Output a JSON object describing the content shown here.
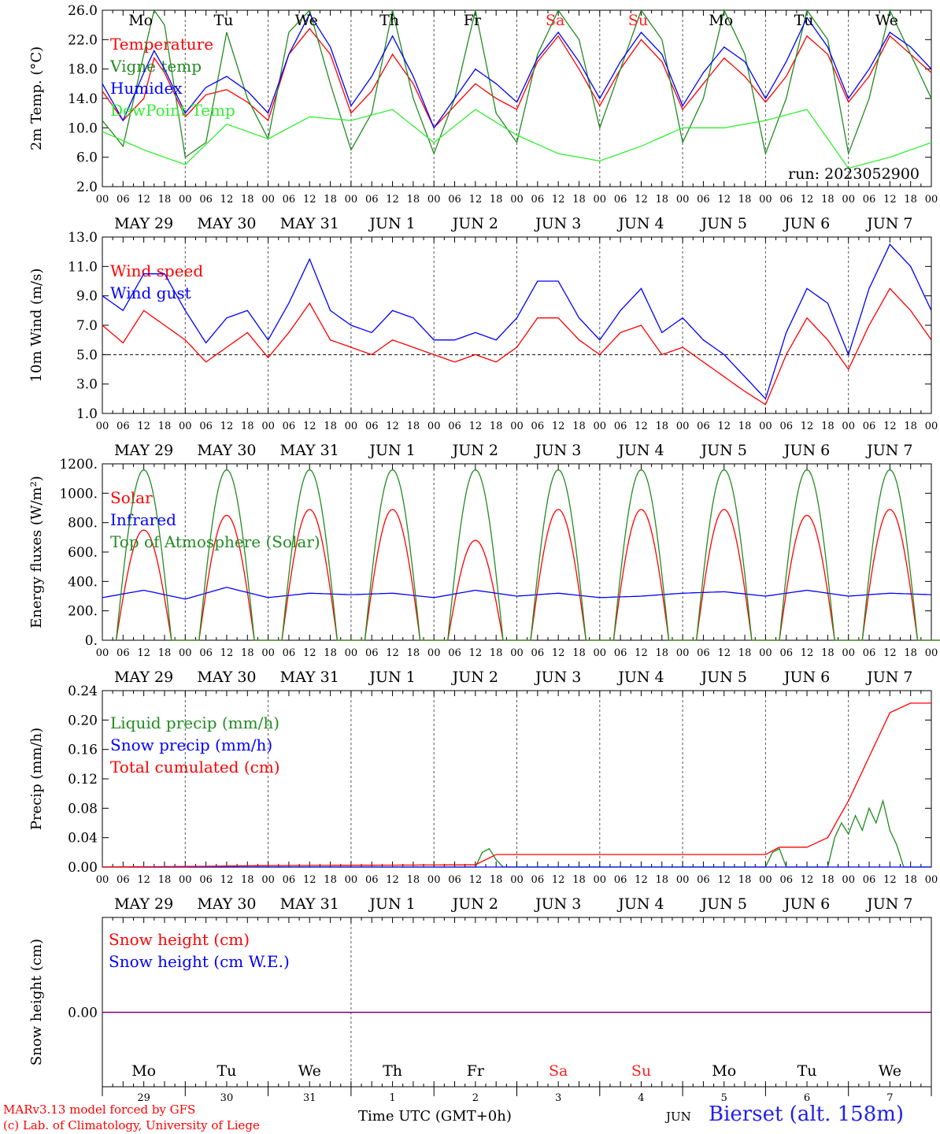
{
  "x_axis": {
    "hour_ticks": [
      "00",
      "06",
      "12",
      "18"
    ],
    "final_tick": "00",
    "day_labels": [
      "MAY 29",
      "MAY 30",
      "MAY 31",
      "JUN  1",
      "JUN  2",
      "JUN  3",
      "JUN  4",
      "JUN  5",
      "JUN  6",
      "JUN  7"
    ],
    "weekdays": [
      "Mo",
      "Tu",
      "We",
      "Th",
      "Fr",
      "Sa",
      "Su",
      "Mo",
      "Tu",
      "We"
    ],
    "weekend_color": "#ff2020",
    "weekend_index": [
      5,
      6
    ],
    "bottom_day_numbers": [
      "29",
      "30",
      "31",
      "1",
      "2",
      "3",
      "4",
      "5",
      "6",
      "7"
    ],
    "bottom_month": "JUN",
    "title": "Time UTC (GMT+0h)"
  },
  "footer": {
    "credit_line1": "MARv3.13 model forced by GFS",
    "credit_line2": "(c) Lab. of Climatology, University of Liege",
    "station": "Bierset (alt. 158m)"
  },
  "chart_data": [
    {
      "id": "temperature",
      "type": "line",
      "ylabel": "2m Temp. (°C)",
      "ylim": [
        2,
        26
      ],
      "yticks": [
        "26.0",
        "22.0",
        "18.0",
        "14.0",
        "10.0",
        "6.0",
        "2.0"
      ],
      "annotation": "run: 2023052900",
      "x_unit": "hours since 2023-05-29 00 UTC",
      "series": [
        {
          "name": "Temperature",
          "color": "#ff0000",
          "x": [
            0,
            6,
            12,
            15,
            18,
            24,
            30,
            36,
            42,
            48,
            54,
            60,
            66,
            72,
            78,
            84,
            90,
            96,
            102,
            108,
            114,
            120,
            126,
            132,
            138,
            144,
            150,
            156,
            162,
            168,
            174,
            180,
            186,
            192,
            198,
            204,
            210,
            216,
            222,
            228,
            234,
            240
          ],
          "y": [
            15,
            11,
            14,
            19.5,
            17.5,
            11.5,
            14.5,
            15.2,
            13.5,
            11,
            20,
            23.5,
            20,
            12,
            15,
            20,
            16,
            10,
            13,
            16,
            14,
            12.5,
            19,
            22.5,
            18,
            13,
            18,
            22,
            19,
            12.5,
            16,
            19.5,
            17,
            13.5,
            17,
            22.5,
            20,
            13.5,
            17,
            22.5,
            20,
            17.5
          ]
        },
        {
          "name": "Vigne temp",
          "color": "#228b22",
          "x": [
            0,
            6,
            12,
            15,
            18,
            24,
            30,
            36,
            42,
            48,
            54,
            60,
            66,
            72,
            78,
            84,
            90,
            96,
            102,
            108,
            114,
            120,
            126,
            132,
            138,
            144,
            150,
            156,
            162,
            168,
            174,
            180,
            186,
            192,
            198,
            204,
            210,
            216,
            222,
            228,
            234,
            240
          ],
          "y": [
            11,
            7.5,
            20,
            26,
            24,
            6,
            8,
            23,
            14,
            8.5,
            23,
            26,
            16,
            7,
            12,
            26,
            14,
            6.5,
            14,
            26,
            12,
            8,
            20,
            26,
            22,
            10,
            18,
            26,
            22,
            8,
            14,
            26,
            20,
            6.5,
            14,
            26,
            22,
            6.5,
            14,
            26,
            20,
            14
          ]
        },
        {
          "name": "Humidex",
          "color": "#0000ff",
          "x": [
            0,
            6,
            12,
            15,
            18,
            24,
            30,
            36,
            42,
            48,
            54,
            60,
            66,
            72,
            78,
            84,
            90,
            96,
            102,
            108,
            114,
            120,
            126,
            132,
            138,
            144,
            150,
            156,
            162,
            168,
            174,
            180,
            186,
            192,
            198,
            204,
            210,
            216,
            222,
            228,
            234,
            240
          ],
          "y": [
            16,
            11,
            17.5,
            20.5,
            18,
            12,
            15.5,
            17,
            15,
            12,
            20,
            25.5,
            21,
            13,
            17,
            22.5,
            17,
            10,
            14,
            18,
            16,
            13.5,
            19.5,
            23,
            19,
            14,
            19,
            23,
            20,
            13,
            17.5,
            21,
            19,
            14,
            19,
            25,
            21,
            14,
            18,
            23,
            21,
            18
          ]
        },
        {
          "name": "DewPoint Temp",
          "color": "#33ee33",
          "x": [
            0,
            12,
            24,
            36,
            48,
            60,
            72,
            84,
            96,
            108,
            120,
            132,
            144,
            156,
            168,
            180,
            192,
            204,
            216,
            228,
            240
          ],
          "y": [
            9.5,
            7,
            5,
            10.5,
            8.5,
            11.5,
            11,
            12.5,
            8,
            12.5,
            9,
            6.5,
            5.5,
            7.5,
            10,
            10,
            11,
            12.5,
            4.5,
            6,
            8
          ]
        }
      ]
    },
    {
      "id": "wind",
      "type": "line",
      "ylabel": "10m Wind (m/s)",
      "ylim": [
        1,
        13
      ],
      "yticks": [
        "13.0",
        "11.0",
        "9.0",
        "7.0",
        "5.0",
        "3.0",
        "1.0"
      ],
      "reference_line": 5.0,
      "x_unit": "hours since 2023-05-29 00 UTC",
      "series": [
        {
          "name": "Wind speed",
          "color": "#ff0000",
          "x": [
            0,
            6,
            12,
            18,
            24,
            30,
            36,
            42,
            48,
            54,
            60,
            66,
            72,
            78,
            84,
            90,
            96,
            102,
            108,
            114,
            120,
            126,
            132,
            138,
            144,
            150,
            156,
            162,
            168,
            174,
            180,
            186,
            192,
            198,
            204,
            210,
            216,
            222,
            228,
            234,
            240
          ],
          "y": [
            7,
            5.8,
            8,
            7,
            6,
            4.5,
            5.5,
            6.5,
            4.8,
            6.5,
            8.5,
            6,
            5.5,
            5,
            6,
            5.5,
            5,
            4.5,
            5,
            4.5,
            5.5,
            7.5,
            7.5,
            6,
            5,
            6.5,
            7,
            5,
            5.5,
            4.5,
            3.5,
            2.5,
            1.6,
            5,
            7.5,
            6,
            4,
            7,
            9.5,
            8,
            6
          ]
        },
        {
          "name": "Wind gust",
          "color": "#0000ff",
          "x": [
            0,
            6,
            12,
            18,
            24,
            30,
            36,
            42,
            48,
            54,
            60,
            66,
            72,
            78,
            84,
            90,
            96,
            102,
            108,
            114,
            120,
            126,
            132,
            138,
            144,
            150,
            156,
            162,
            168,
            174,
            180,
            186,
            192,
            198,
            204,
            210,
            216,
            222,
            228,
            234,
            240
          ],
          "y": [
            9,
            8,
            10.5,
            10.5,
            8,
            5.8,
            7.5,
            8,
            6,
            8.5,
            11.5,
            8,
            7,
            6.5,
            8,
            7.5,
            6,
            6,
            6.5,
            6,
            7.5,
            10,
            10,
            7.5,
            6,
            8,
            9.5,
            6.5,
            7.5,
            6,
            5,
            3.5,
            2,
            6.5,
            9.5,
            8.5,
            5,
            9.5,
            12.5,
            11,
            8
          ]
        }
      ]
    },
    {
      "id": "energy",
      "type": "line",
      "ylabel": "Energy fluxes (W/m²)",
      "ylim": [
        0,
        1200
      ],
      "yticks": [
        "1200.",
        "1000.",
        "800.",
        "600.",
        "400.",
        "200.",
        "0."
      ],
      "x_unit": "hours since 2023-05-29 00 UTC",
      "daily_peaks": {
        "solar_peak_by_day": [
          750,
          850,
          890,
          890,
          680,
          890,
          890,
          890,
          850,
          890
        ],
        "toa_peak": 1160,
        "sunrise_hour": 4,
        "sunset_hour": 20
      },
      "series": [
        {
          "name": "Solar",
          "color": "#ff0000"
        },
        {
          "name": "Infrared",
          "color": "#0000ff",
          "x": [
            0,
            12,
            24,
            36,
            48,
            60,
            72,
            84,
            96,
            108,
            120,
            132,
            144,
            156,
            168,
            180,
            192,
            204,
            216,
            228,
            240
          ],
          "y": [
            290,
            340,
            280,
            360,
            290,
            320,
            310,
            320,
            290,
            340,
            300,
            320,
            290,
            300,
            320,
            330,
            300,
            340,
            300,
            320,
            310
          ]
        },
        {
          "name": "Top of Atmosphere (Solar)",
          "color": "#228b22"
        }
      ]
    },
    {
      "id": "precip",
      "type": "line",
      "ylabel": "Precip (mm/h)",
      "ylim": [
        0,
        0.24
      ],
      "yticks": [
        "0.24",
        "0.20",
        "0.16",
        "0.12",
        "0.08",
        "0.04",
        "0.00"
      ],
      "x_unit": "hours since 2023-05-29 00 UTC",
      "series": [
        {
          "name": "Liquid precip (mm/h)",
          "color": "#228b22",
          "x": [
            0,
            108,
            110,
            112,
            114,
            116,
            192,
            194,
            196,
            198,
            210,
            212,
            214,
            216,
            218,
            220,
            222,
            224,
            226,
            228,
            230,
            232,
            240
          ],
          "y": [
            0,
            0,
            0.02,
            0.025,
            0.01,
            0,
            0,
            0.02,
            0.025,
            0,
            0,
            0.04,
            0.06,
            0.045,
            0.07,
            0.05,
            0.08,
            0.06,
            0.09,
            0.05,
            0.03,
            0,
            0
          ]
        },
        {
          "name": "Snow precip (mm/h)",
          "color": "#0000ff",
          "x": [
            0,
            240
          ],
          "y": [
            0,
            0
          ]
        },
        {
          "name": "Total cumulated (cm)",
          "color": "#ff0000",
          "x": [
            0,
            30,
            48,
            108,
            114,
            192,
            196,
            204,
            210,
            216,
            222,
            228,
            234,
            240
          ],
          "y": [
            0,
            0.001,
            0.002,
            0.003,
            0.017,
            0.017,
            0.027,
            0.027,
            0.04,
            0.09,
            0.15,
            0.21,
            0.223,
            0.223
          ]
        }
      ]
    },
    {
      "id": "snow",
      "type": "line",
      "ylabel": "Snow height (cm)",
      "yticks": [
        "0.00"
      ],
      "x_unit": "hours since 2023-05-29 00 UTC",
      "series": [
        {
          "name": "Snow height (cm)",
          "color": "#ff0000",
          "x": [
            0,
            240
          ],
          "y": [
            0,
            0
          ]
        },
        {
          "name": "Snow height (cm W.E.)",
          "color": "#0000ff",
          "x": [
            0,
            240
          ],
          "y": [
            0,
            0
          ]
        }
      ]
    }
  ]
}
